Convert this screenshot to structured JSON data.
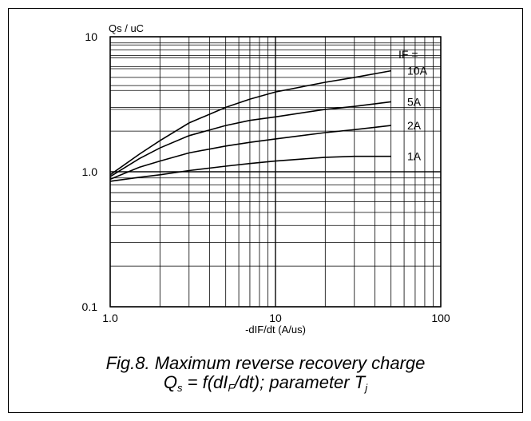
{
  "chart_data": {
    "type": "line",
    "x_scale": "log",
    "y_scale": "log",
    "xlim": [
      1.0,
      100
    ],
    "ylim": [
      0.1,
      10
    ],
    "x_ticks": [
      "1.0",
      "10",
      "100"
    ],
    "y_ticks": [
      "0.1",
      "1.0",
      "10"
    ],
    "xlabel": "-dIF/dt (A/us)",
    "ylabel": "Qs / uC",
    "legend_title": "IF =",
    "grid": true,
    "series": [
      {
        "name": "10A",
        "x": [
          1,
          1.5,
          2,
          3,
          5,
          7,
          10,
          20,
          30,
          50
        ],
        "y": [
          0.95,
          1.35,
          1.7,
          2.3,
          3.0,
          3.45,
          3.9,
          4.6,
          5.0,
          5.6
        ]
      },
      {
        "name": "5A",
        "x": [
          1,
          1.5,
          2,
          3,
          5,
          7,
          10,
          20,
          30,
          50
        ],
        "y": [
          0.92,
          1.25,
          1.5,
          1.85,
          2.2,
          2.4,
          2.55,
          2.9,
          3.05,
          3.3
        ]
      },
      {
        "name": "2A",
        "x": [
          1,
          1.5,
          2,
          3,
          5,
          7,
          10,
          20,
          30,
          50
        ],
        "y": [
          0.88,
          1.08,
          1.2,
          1.38,
          1.55,
          1.65,
          1.75,
          1.95,
          2.05,
          2.2
        ]
      },
      {
        "name": "1A",
        "x": [
          1,
          1.5,
          2,
          3,
          5,
          7,
          10,
          20,
          30,
          50
        ],
        "y": [
          0.85,
          0.91,
          0.95,
          1.02,
          1.1,
          1.15,
          1.2,
          1.28,
          1.3,
          1.3
        ]
      }
    ]
  },
  "caption": {
    "line1": "Fig.8.   Maximum reverse recovery charge",
    "line2_a": "Q",
    "line2_b": "s",
    "line2_c": " = f(dI",
    "line2_d": "F",
    "line2_e": "/dt); parameter T",
    "line2_f": "j"
  }
}
